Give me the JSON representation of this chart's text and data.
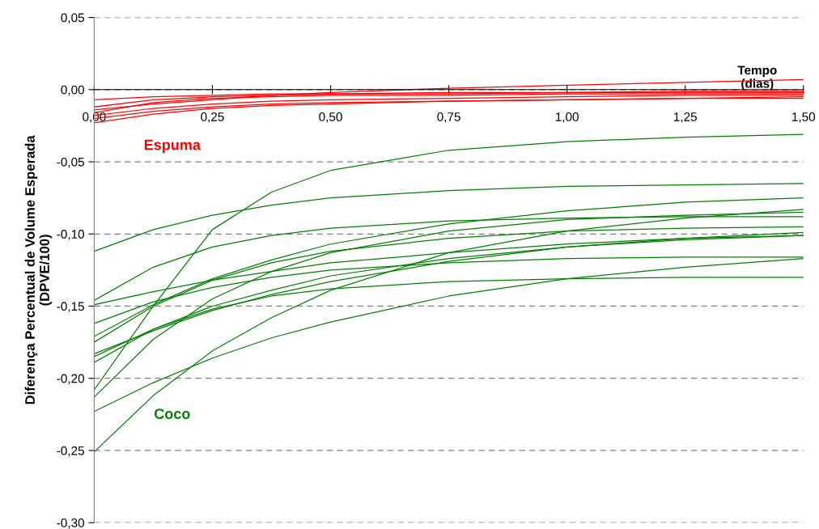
{
  "chart_data": {
    "type": "line",
    "xlabel": "Tempo\n(dias)",
    "ylabel": "Diferença Percentual de Volume Esperada\n(DPVE/100)",
    "x": [
      0,
      0.125,
      0.25,
      0.375,
      0.5,
      0.75,
      1.0,
      1.25,
      1.5
    ],
    "xlim": [
      0,
      1.5
    ],
    "xticks": [
      {
        "value": 0,
        "label": "0,00"
      },
      {
        "value": 0.25,
        "label": "0,25"
      },
      {
        "value": 0.5,
        "label": "0,50"
      },
      {
        "value": 0.75,
        "label": "0,75"
      },
      {
        "value": 1.0,
        "label": "1,00"
      },
      {
        "value": 1.25,
        "label": "1,25"
      },
      {
        "value": 1.5,
        "label": "1,50"
      }
    ],
    "ylim": [
      -0.3,
      0.05
    ],
    "yticks": [
      {
        "value": 0.05,
        "label": "0,05"
      },
      {
        "value": 0,
        "label": "0,00"
      },
      {
        "value": -0.05,
        "label": "-0,05"
      },
      {
        "value": -0.1,
        "label": "-0,10"
      },
      {
        "value": -0.15,
        "label": "-0,15"
      },
      {
        "value": -0.2,
        "label": "-0,20"
      },
      {
        "value": -0.25,
        "label": "-0,25"
      },
      {
        "value": -0.3,
        "label": "-0,30"
      }
    ],
    "grid": "y",
    "marker": "none",
    "line_style": "solid",
    "series": [
      {
        "name": "Espuma",
        "color": "#ff0000",
        "values": [
          -0.014,
          -0.01,
          -0.007,
          -0.004,
          -0.002,
          0.001,
          0.003,
          0.005,
          0.007
        ]
      },
      {
        "color": "#ff0000",
        "values": [
          -0.007,
          -0.005,
          -0.004,
          -0.003,
          -0.003,
          -0.002,
          -0.002,
          -0.001,
          -0.001
        ]
      },
      {
        "color": "#ff0000",
        "values": [
          -0.012,
          -0.007,
          -0.005,
          -0.004,
          -0.003,
          -0.003,
          -0.002,
          -0.002,
          -0.002
        ]
      },
      {
        "color": "#ff0000",
        "values": [
          -0.016,
          -0.009,
          -0.006,
          -0.005,
          -0.004,
          -0.004,
          -0.003,
          -0.003,
          -0.003
        ]
      },
      {
        "color": "#ff0000",
        "values": [
          -0.018,
          -0.013,
          -0.01,
          -0.008,
          -0.007,
          -0.006,
          -0.005,
          -0.004,
          -0.004
        ]
      },
      {
        "color": "#ff0000",
        "values": [
          -0.023,
          -0.017,
          -0.013,
          -0.011,
          -0.01,
          -0.008,
          -0.007,
          -0.006,
          -0.005
        ]
      },
      {
        "color": "#ff0000",
        "values": [
          -0.02,
          -0.015,
          -0.012,
          -0.01,
          -0.009,
          -0.008,
          -0.007,
          -0.006,
          -0.006
        ]
      },
      {
        "name": "Coco",
        "color": "#008000",
        "values": [
          -0.112,
          -0.097,
          -0.087,
          -0.08,
          -0.075,
          -0.07,
          -0.067,
          -0.066,
          -0.065
        ]
      },
      {
        "color": "#008000",
        "values": [
          -0.208,
          -0.15,
          -0.097,
          -0.071,
          -0.056,
          -0.042,
          -0.036,
          -0.033,
          -0.031
        ]
      },
      {
        "color": "#008000",
        "values": [
          -0.146,
          -0.123,
          -0.109,
          -0.101,
          -0.096,
          -0.091,
          -0.089,
          -0.088,
          -0.088
        ]
      },
      {
        "color": "#008000",
        "values": [
          -0.149,
          -0.14,
          -0.132,
          -0.126,
          -0.12,
          -0.113,
          -0.107,
          -0.103,
          -0.101
        ]
      },
      {
        "color": "#008000",
        "values": [
          -0.162,
          -0.147,
          -0.137,
          -0.13,
          -0.125,
          -0.12,
          -0.117,
          -0.116,
          -0.116
        ]
      },
      {
        "color": "#008000",
        "values": [
          -0.171,
          -0.149,
          -0.131,
          -0.118,
          -0.107,
          -0.093,
          -0.084,
          -0.078,
          -0.075
        ]
      },
      {
        "color": "#008000",
        "values": [
          -0.175,
          -0.15,
          -0.132,
          -0.12,
          -0.112,
          -0.103,
          -0.098,
          -0.096,
          -0.095
        ]
      },
      {
        "color": "#008000",
        "values": [
          -0.183,
          -0.167,
          -0.153,
          -0.142,
          -0.133,
          -0.119,
          -0.109,
          -0.103,
          -0.099
        ]
      },
      {
        "color": "#008000",
        "values": [
          -0.189,
          -0.166,
          -0.152,
          -0.143,
          -0.138,
          -0.133,
          -0.131,
          -0.13,
          -0.13
        ]
      },
      {
        "color": "#008000",
        "values": [
          -0.213,
          -0.173,
          -0.145,
          -0.126,
          -0.113,
          -0.098,
          -0.09,
          -0.087,
          -0.085
        ]
      },
      {
        "color": "#008000",
        "values": [
          -0.223,
          -0.203,
          -0.186,
          -0.172,
          -0.161,
          -0.143,
          -0.131,
          -0.123,
          -0.117
        ]
      },
      {
        "color": "#008000",
        "values": [
          -0.251,
          -0.212,
          -0.181,
          -0.158,
          -0.139,
          -0.113,
          -0.098,
          -0.089,
          -0.083
        ]
      },
      {
        "color": "#008000",
        "values": [
          -0.185,
          -0.166,
          -0.15,
          -0.139,
          -0.129,
          -0.117,
          -0.109,
          -0.104,
          -0.101
        ]
      }
    ]
  }
}
